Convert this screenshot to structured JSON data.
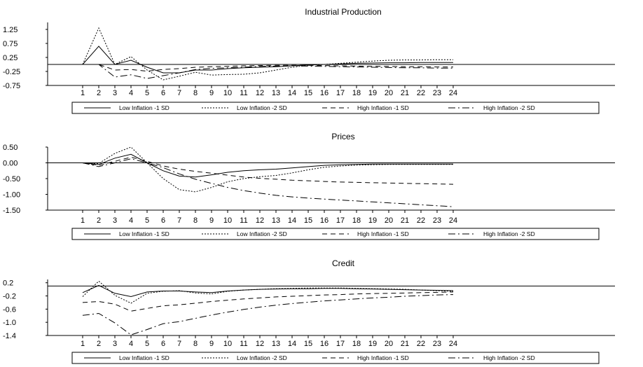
{
  "chart_data": [
    {
      "type": "line",
      "title": "Industrial Production",
      "x": [
        1,
        2,
        3,
        4,
        5,
        6,
        7,
        8,
        9,
        10,
        11,
        12,
        13,
        14,
        15,
        16,
        17,
        18,
        19,
        20,
        21,
        22,
        23,
        24
      ],
      "yticks": [
        "1.25",
        "0.75",
        "0.25",
        "-0.25",
        "-0.75"
      ],
      "ylim": [
        -0.75,
        1.5
      ],
      "series": [
        {
          "name": "Low Inflation -1 SD",
          "values": [
            0,
            0.65,
            0,
            0.15,
            -0.1,
            -0.3,
            -0.3,
            -0.2,
            -0.2,
            -0.15,
            -0.12,
            -0.1,
            -0.08,
            -0.05,
            -0.02,
            0,
            0.02,
            0.04,
            0.05,
            0.06,
            0.06,
            0.07,
            0.07,
            0.07
          ]
        },
        {
          "name": "Low Inflation -2 SD",
          "values": [
            0,
            1.3,
            0,
            0.28,
            -0.2,
            -0.55,
            -0.42,
            -0.28,
            -0.38,
            -0.36,
            -0.35,
            -0.3,
            -0.2,
            -0.1,
            -0.03,
            0,
            0.04,
            0.08,
            0.12,
            0.15,
            0.16,
            0.16,
            0.17,
            0.17
          ]
        },
        {
          "name": "High Inflation -1 SD",
          "values": [
            0,
            0,
            -0.2,
            -0.18,
            -0.24,
            -0.18,
            -0.15,
            -0.1,
            -0.08,
            -0.07,
            -0.05,
            -0.04,
            -0.03,
            -0.03,
            -0.03,
            -0.04,
            -0.05,
            -0.06,
            -0.07,
            -0.07,
            -0.08,
            -0.08,
            -0.09,
            -0.09
          ]
        },
        {
          "name": "High Inflation -2 SD",
          "values": [
            0,
            0,
            -0.45,
            -0.37,
            -0.5,
            -0.4,
            -0.3,
            -0.18,
            -0.14,
            -0.12,
            -0.1,
            -0.07,
            -0.06,
            -0.05,
            -0.06,
            -0.07,
            -0.08,
            -0.09,
            -0.1,
            -0.11,
            -0.12,
            -0.12,
            -0.13,
            -0.13
          ]
        }
      ]
    },
    {
      "type": "line",
      "title": "Prices",
      "x": [
        1,
        2,
        3,
        4,
        5,
        6,
        7,
        8,
        9,
        10,
        11,
        12,
        13,
        14,
        15,
        16,
        17,
        18,
        19,
        20,
        21,
        22,
        23,
        24
      ],
      "yticks": [
        "0.50",
        "0.00",
        "-0.50",
        "-1.00",
        "-1.50"
      ],
      "ylim": [
        -1.5,
        0.5
      ],
      "series": [
        {
          "name": "Low Inflation -1 SD",
          "values": [
            0,
            -0.05,
            0.15,
            0.27,
            0.0,
            -0.25,
            -0.42,
            -0.45,
            -0.38,
            -0.3,
            -0.25,
            -0.22,
            -0.2,
            -0.16,
            -0.12,
            -0.08,
            -0.06,
            -0.05,
            -0.04,
            -0.04,
            -0.04,
            -0.04,
            -0.04,
            -0.04
          ]
        },
        {
          "name": "Low Inflation -2 SD",
          "values": [
            0,
            -0.02,
            0.3,
            0.5,
            0.0,
            -0.5,
            -0.85,
            -0.92,
            -0.78,
            -0.6,
            -0.5,
            -0.44,
            -0.4,
            -0.32,
            -0.22,
            -0.14,
            -0.1,
            -0.07,
            -0.06,
            -0.05,
            -0.05,
            -0.05,
            -0.05,
            -0.05
          ]
        },
        {
          "name": "High Inflation -1 SD",
          "values": [
            0,
            -0.08,
            0.05,
            0.18,
            0.05,
            -0.1,
            -0.2,
            -0.27,
            -0.33,
            -0.39,
            -0.45,
            -0.49,
            -0.52,
            -0.55,
            -0.57,
            -0.59,
            -0.61,
            -0.62,
            -0.63,
            -0.64,
            -0.65,
            -0.66,
            -0.67,
            -0.68
          ]
        },
        {
          "name": "High Inflation -2 SD",
          "values": [
            0,
            -0.12,
            0.0,
            0.13,
            0.0,
            -0.15,
            -0.35,
            -0.52,
            -0.65,
            -0.78,
            -0.88,
            -0.96,
            -1.03,
            -1.08,
            -1.12,
            -1.15,
            -1.18,
            -1.21,
            -1.24,
            -1.27,
            -1.3,
            -1.33,
            -1.36,
            -1.39
          ]
        }
      ]
    },
    {
      "type": "line",
      "title": "Credit",
      "x": [
        1,
        2,
        3,
        4,
        5,
        6,
        7,
        8,
        9,
        10,
        11,
        12,
        13,
        14,
        15,
        16,
        17,
        18,
        19,
        20,
        21,
        22,
        23,
        24
      ],
      "yticks": [
        "0.2",
        "-0.2",
        "-0.6",
        "-1.0",
        "-1.4"
      ],
      "ylim": [
        -1.4,
        0.3
      ],
      "series": [
        {
          "name": "Low Inflation -1 SD",
          "values": [
            -0.1,
            0.12,
            -0.12,
            -0.22,
            -0.08,
            -0.05,
            -0.05,
            -0.08,
            -0.1,
            -0.05,
            -0.02,
            0,
            0.01,
            0.02,
            0.02,
            0.03,
            0.03,
            0.02,
            0.01,
            0,
            -0.01,
            -0.02,
            -0.03,
            -0.04
          ]
        },
        {
          "name": "Low Inflation -2 SD",
          "values": [
            -0.22,
            0.25,
            -0.18,
            -0.42,
            -0.12,
            -0.06,
            -0.04,
            -0.11,
            -0.14,
            -0.06,
            -0.02,
            0.0,
            0.02,
            0.03,
            0.04,
            0.04,
            0.04,
            0.03,
            0.02,
            0.01,
            0,
            -0.02,
            -0.04,
            -0.06
          ]
        },
        {
          "name": "High Inflation -1 SD",
          "values": [
            -0.4,
            -0.37,
            -0.45,
            -0.66,
            -0.58,
            -0.5,
            -0.47,
            -0.42,
            -0.37,
            -0.33,
            -0.29,
            -0.26,
            -0.23,
            -0.21,
            -0.19,
            -0.17,
            -0.16,
            -0.14,
            -0.13,
            -0.12,
            -0.11,
            -0.1,
            -0.09,
            -0.08
          ]
        },
        {
          "name": "High Inflation -2 SD",
          "values": [
            -0.79,
            -0.73,
            -1.02,
            -1.38,
            -1.22,
            -1.04,
            -0.98,
            -0.88,
            -0.78,
            -0.69,
            -0.61,
            -0.54,
            -0.48,
            -0.43,
            -0.39,
            -0.35,
            -0.32,
            -0.29,
            -0.26,
            -0.24,
            -0.21,
            -0.19,
            -0.17,
            -0.16
          ]
        }
      ]
    }
  ],
  "style": {
    "line_color": "#000000",
    "background": "#ffffff"
  }
}
